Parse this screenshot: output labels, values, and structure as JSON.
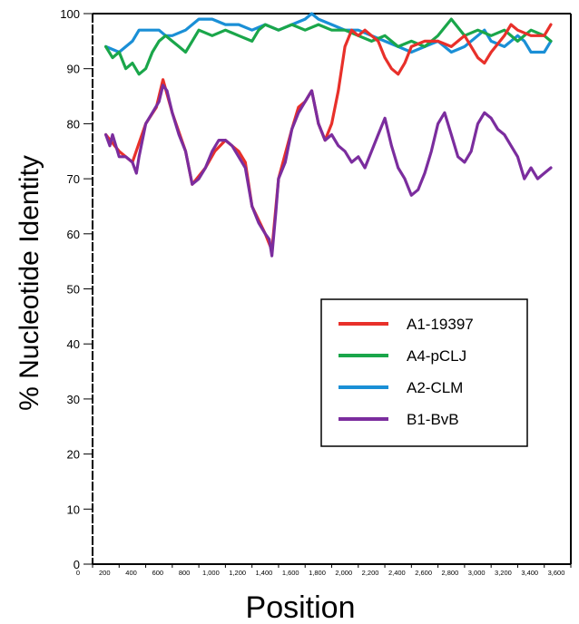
{
  "chart_data": {
    "type": "line",
    "title": "",
    "xlabel": "Position",
    "ylabel": "% Nucleotide Identity",
    "xlim": [
      0,
      3600
    ],
    "ylim": [
      0,
      100
    ],
    "x_ticks": [
      "0",
      "200",
      "400",
      "600",
      "800",
      "1,000",
      "1,200",
      "1,400",
      "1,600",
      "1,800",
      "2,000",
      "2,200",
      "2,400",
      "2,600",
      "2,800",
      "3,000",
      "3,200",
      "3,400",
      "3,600"
    ],
    "y_ticks": [
      "0",
      "10",
      "20",
      "30",
      "40",
      "50",
      "60",
      "70",
      "80",
      "90",
      "100"
    ],
    "grid": false,
    "legend_position": "center-right",
    "series": [
      {
        "name": "A1-19397",
        "color": "#e8302a",
        "points": [
          [
            100,
            78
          ],
          [
            200,
            75
          ],
          [
            300,
            73
          ],
          [
            400,
            80
          ],
          [
            480,
            83
          ],
          [
            530,
            88
          ],
          [
            600,
            82
          ],
          [
            700,
            75
          ],
          [
            750,
            69
          ],
          [
            850,
            72
          ],
          [
            920,
            75
          ],
          [
            1000,
            77
          ],
          [
            1100,
            75
          ],
          [
            1150,
            73
          ],
          [
            1200,
            65
          ],
          [
            1300,
            60
          ],
          [
            1350,
            57
          ],
          [
            1400,
            70
          ],
          [
            1500,
            79
          ],
          [
            1550,
            83
          ],
          [
            1600,
            84
          ],
          [
            1650,
            86
          ],
          [
            1700,
            80
          ],
          [
            1750,
            77
          ],
          [
            1800,
            80
          ],
          [
            1850,
            86
          ],
          [
            1900,
            94
          ],
          [
            1950,
            97
          ],
          [
            2000,
            96
          ],
          [
            2050,
            97
          ],
          [
            2100,
            96
          ],
          [
            2150,
            95
          ],
          [
            2200,
            92
          ],
          [
            2250,
            90
          ],
          [
            2300,
            89
          ],
          [
            2350,
            91
          ],
          [
            2400,
            94
          ],
          [
            2500,
            95
          ],
          [
            2600,
            95
          ],
          [
            2700,
            94
          ],
          [
            2800,
            96
          ],
          [
            2900,
            92
          ],
          [
            2950,
            91
          ],
          [
            3000,
            93
          ],
          [
            3100,
            96
          ],
          [
            3150,
            98
          ],
          [
            3200,
            97
          ],
          [
            3300,
            96
          ],
          [
            3400,
            96
          ],
          [
            3450,
            98
          ]
        ]
      },
      {
        "name": "A4-pCLJ",
        "color": "#1aa64a",
        "points": [
          [
            100,
            94
          ],
          [
            150,
            92
          ],
          [
            200,
            93
          ],
          [
            250,
            90
          ],
          [
            300,
            91
          ],
          [
            350,
            89
          ],
          [
            400,
            90
          ],
          [
            450,
            93
          ],
          [
            500,
            95
          ],
          [
            550,
            96
          ],
          [
            600,
            95
          ],
          [
            650,
            94
          ],
          [
            700,
            93
          ],
          [
            750,
            95
          ],
          [
            800,
            97
          ],
          [
            900,
            96
          ],
          [
            1000,
            97
          ],
          [
            1100,
            96
          ],
          [
            1200,
            95
          ],
          [
            1250,
            97
          ],
          [
            1300,
            98
          ],
          [
            1400,
            97
          ],
          [
            1500,
            98
          ],
          [
            1600,
            97
          ],
          [
            1700,
            98
          ],
          [
            1800,
            97
          ],
          [
            1900,
            97
          ],
          [
            2000,
            96
          ],
          [
            2100,
            95
          ],
          [
            2200,
            96
          ],
          [
            2300,
            94
          ],
          [
            2400,
            95
          ],
          [
            2500,
            94
          ],
          [
            2600,
            96
          ],
          [
            2700,
            99
          ],
          [
            2800,
            96
          ],
          [
            2900,
            97
          ],
          [
            3000,
            96
          ],
          [
            3100,
            97
          ],
          [
            3200,
            95
          ],
          [
            3300,
            97
          ],
          [
            3400,
            96
          ],
          [
            3450,
            95
          ]
        ]
      },
      {
        "name": "A2-CLM",
        "color": "#1a8fd6",
        "points": [
          [
            100,
            94
          ],
          [
            200,
            93
          ],
          [
            300,
            95
          ],
          [
            350,
            97
          ],
          [
            400,
            97
          ],
          [
            500,
            97
          ],
          [
            550,
            96
          ],
          [
            600,
            96
          ],
          [
            700,
            97
          ],
          [
            800,
            99
          ],
          [
            900,
            99
          ],
          [
            1000,
            98
          ],
          [
            1100,
            98
          ],
          [
            1200,
            97
          ],
          [
            1300,
            98
          ],
          [
            1400,
            97
          ],
          [
            1500,
            98
          ],
          [
            1600,
            99
          ],
          [
            1650,
            100
          ],
          [
            1700,
            99
          ],
          [
            1800,
            98
          ],
          [
            1900,
            97
          ],
          [
            2000,
            97
          ],
          [
            2100,
            96
          ],
          [
            2200,
            95
          ],
          [
            2300,
            94
          ],
          [
            2400,
            93
          ],
          [
            2500,
            94
          ],
          [
            2600,
            95
          ],
          [
            2700,
            93
          ],
          [
            2800,
            94
          ],
          [
            2900,
            96
          ],
          [
            2950,
            97
          ],
          [
            3000,
            95
          ],
          [
            3100,
            94
          ],
          [
            3200,
            96
          ],
          [
            3250,
            95
          ],
          [
            3300,
            93
          ],
          [
            3400,
            93
          ],
          [
            3450,
            95
          ]
        ]
      },
      {
        "name": "B1-BvB",
        "color": "#7b2d9e",
        "points": [
          [
            100,
            78
          ],
          [
            130,
            76
          ],
          [
            150,
            78
          ],
          [
            200,
            74
          ],
          [
            250,
            74
          ],
          [
            300,
            73
          ],
          [
            330,
            71
          ],
          [
            350,
            74
          ],
          [
            400,
            80
          ],
          [
            450,
            82
          ],
          [
            500,
            84
          ],
          [
            530,
            87
          ],
          [
            560,
            86
          ],
          [
            600,
            82
          ],
          [
            650,
            78
          ],
          [
            700,
            75
          ],
          [
            750,
            69
          ],
          [
            800,
            70
          ],
          [
            850,
            72
          ],
          [
            900,
            75
          ],
          [
            950,
            77
          ],
          [
            1000,
            77
          ],
          [
            1050,
            76
          ],
          [
            1100,
            74
          ],
          [
            1150,
            72
          ],
          [
            1200,
            65
          ],
          [
            1250,
            62
          ],
          [
            1300,
            60
          ],
          [
            1330,
            59
          ],
          [
            1350,
            56
          ],
          [
            1380,
            64
          ],
          [
            1400,
            70
          ],
          [
            1450,
            73
          ],
          [
            1500,
            79
          ],
          [
            1550,
            82
          ],
          [
            1600,
            84
          ],
          [
            1650,
            86
          ],
          [
            1700,
            80
          ],
          [
            1750,
            77
          ],
          [
            1800,
            78
          ],
          [
            1850,
            76
          ],
          [
            1900,
            75
          ],
          [
            1950,
            73
          ],
          [
            2000,
            74
          ],
          [
            2050,
            72
          ],
          [
            2100,
            75
          ],
          [
            2150,
            78
          ],
          [
            2200,
            81
          ],
          [
            2250,
            76
          ],
          [
            2300,
            72
          ],
          [
            2350,
            70
          ],
          [
            2400,
            67
          ],
          [
            2450,
            68
          ],
          [
            2500,
            71
          ],
          [
            2550,
            75
          ],
          [
            2600,
            80
          ],
          [
            2650,
            82
          ],
          [
            2700,
            78
          ],
          [
            2750,
            74
          ],
          [
            2800,
            73
          ],
          [
            2850,
            75
          ],
          [
            2900,
            80
          ],
          [
            2950,
            82
          ],
          [
            3000,
            81
          ],
          [
            3050,
            79
          ],
          [
            3100,
            78
          ],
          [
            3150,
            76
          ],
          [
            3200,
            74
          ],
          [
            3250,
            70
          ],
          [
            3300,
            72
          ],
          [
            3350,
            70
          ],
          [
            3400,
            71
          ],
          [
            3450,
            72
          ]
        ]
      }
    ]
  }
}
